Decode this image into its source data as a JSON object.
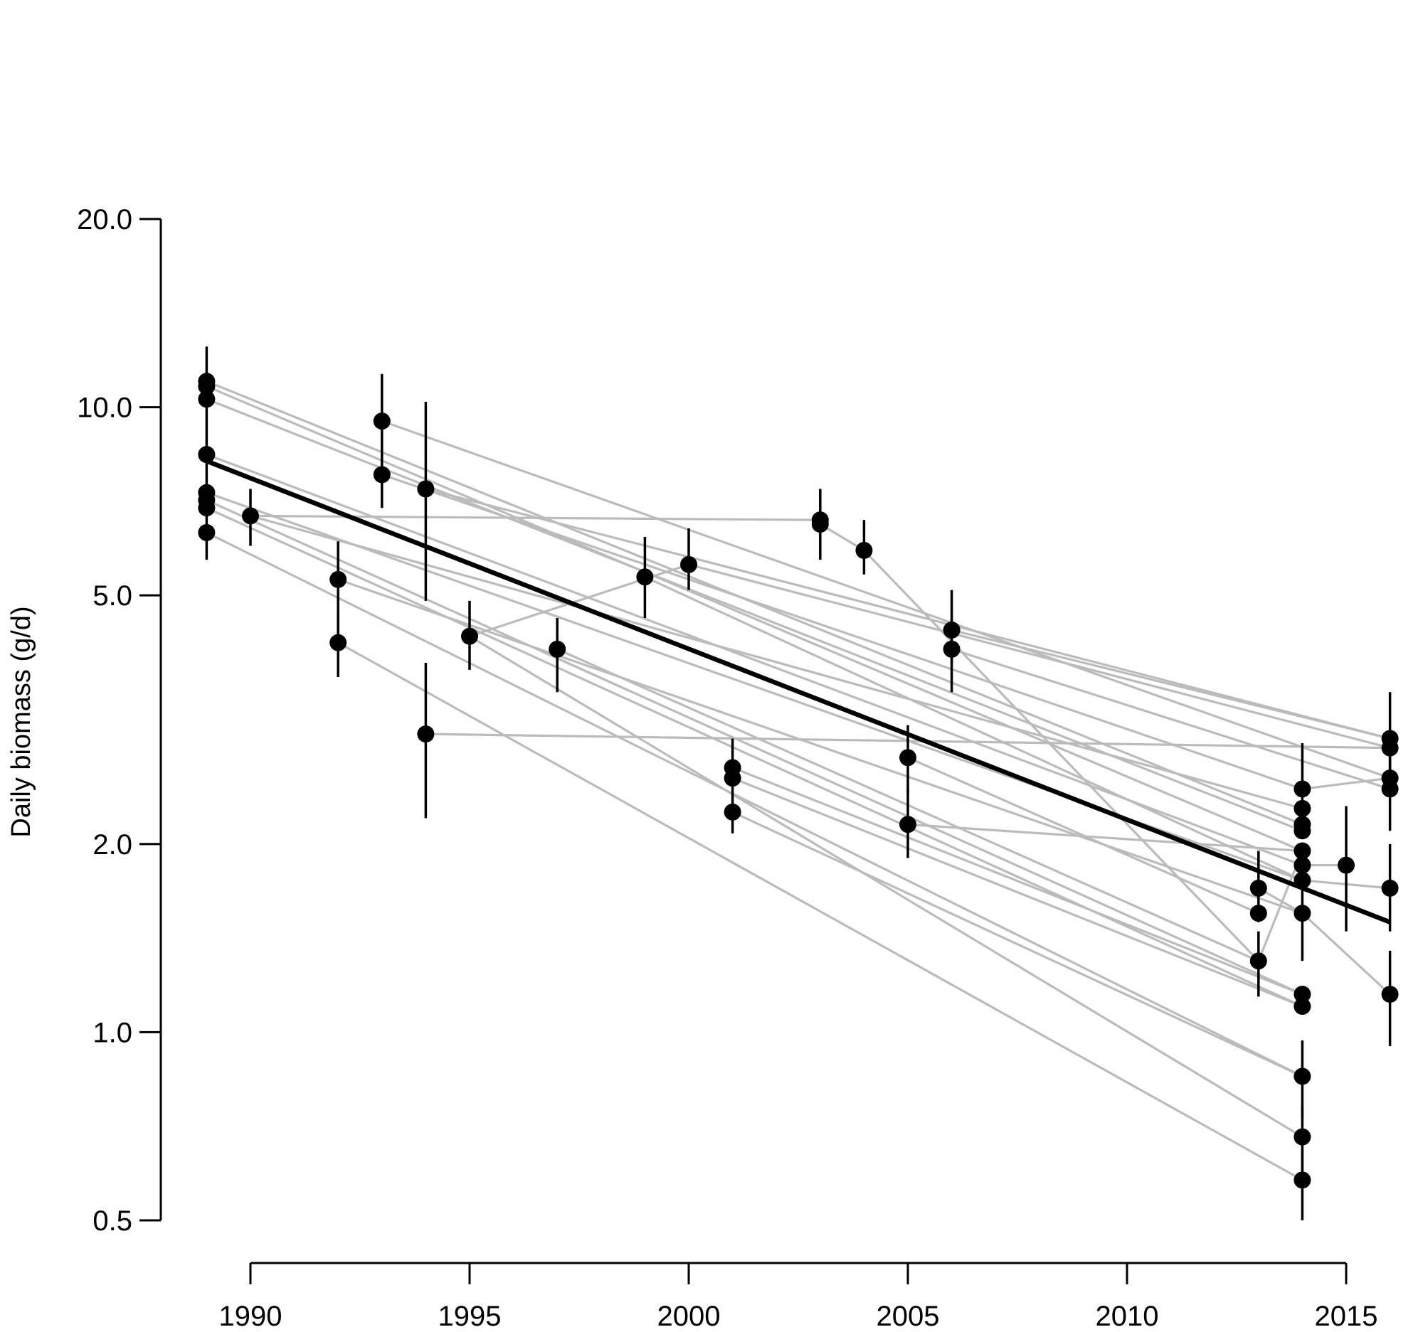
{
  "chart_data": {
    "type": "scatter",
    "title": "",
    "xlabel": "",
    "ylabel": "Daily biomass (g/d)",
    "y_scale": "log",
    "xlim": [
      1989,
      2016
    ],
    "ylim": [
      0.5,
      20
    ],
    "x_ticks": [
      "1990",
      "1995",
      "2000",
      "2005",
      "2010",
      "2015"
    ],
    "y_ticks": [
      "0.5",
      "1.0",
      "2.0",
      "5.0",
      "10.0",
      "20.0"
    ],
    "grid": false,
    "colors": {
      "points": "#000000",
      "connectors": "#bbbbbb",
      "trend": "#000000"
    },
    "points": [
      {
        "x": 1989,
        "y": 11.0,
        "lo": 7.1,
        "hi": 12.5
      },
      {
        "x": 1989,
        "y": 10.8
      },
      {
        "x": 1989,
        "y": 10.3
      },
      {
        "x": 1989,
        "y": 8.4
      },
      {
        "x": 1989,
        "y": 7.3
      },
      {
        "x": 1989,
        "y": 7.1
      },
      {
        "x": 1989,
        "y": 6.9
      },
      {
        "x": 1989,
        "y": 6.3,
        "lo": 5.7,
        "hi": 7.1
      },
      {
        "x": 1990,
        "y": 6.7,
        "lo": 6.0,
        "hi": 7.4
      },
      {
        "x": 1992,
        "y": 5.3,
        "lo": 4.3,
        "hi": 6.1
      },
      {
        "x": 1992,
        "y": 4.2,
        "lo": 3.7,
        "hi": 4.7
      },
      {
        "x": 1993,
        "y": 9.5,
        "lo": 7.8,
        "hi": 11.3
      },
      {
        "x": 1993,
        "y": 7.8,
        "lo": 6.9,
        "hi": 8.4
      },
      {
        "x": 1994,
        "y": 7.4,
        "lo": 4.9,
        "hi": 10.2
      },
      {
        "x": 1994,
        "y": 3.0,
        "lo": 2.2,
        "hi": 3.9
      },
      {
        "x": 1995,
        "y": 4.3,
        "lo": 3.8,
        "hi": 4.9
      },
      {
        "x": 1997,
        "y": 4.1,
        "lo": 3.5,
        "hi": 4.6
      },
      {
        "x": 1999,
        "y": 5.35,
        "lo": 4.6,
        "hi": 6.2
      },
      {
        "x": 2000,
        "y": 5.6,
        "lo": 5.1,
        "hi": 6.4
      },
      {
        "x": 2001,
        "y": 2.65,
        "lo": 2.45,
        "hi": 2.95
      },
      {
        "x": 2001,
        "y": 2.55
      },
      {
        "x": 2001,
        "y": 2.25,
        "lo": 2.08,
        "hi": 2.45
      },
      {
        "x": 2003,
        "y": 6.6,
        "lo": 5.7,
        "hi": 7.4
      },
      {
        "x": 2003,
        "y": 6.5
      },
      {
        "x": 2004,
        "y": 5.9,
        "lo": 5.4,
        "hi": 6.6
      },
      {
        "x": 2005,
        "y": 2.75,
        "lo": 2.4,
        "hi": 3.1
      },
      {
        "x": 2005,
        "y": 2.15,
        "lo": 1.9,
        "hi": 2.45
      },
      {
        "x": 2006,
        "y": 4.4,
        "lo": 3.9,
        "hi": 5.1
      },
      {
        "x": 2006,
        "y": 4.1,
        "lo": 3.5,
        "hi": 4.6
      },
      {
        "x": 2013,
        "y": 1.7,
        "lo": 1.5,
        "hi": 1.95
      },
      {
        "x": 2013,
        "y": 1.55
      },
      {
        "x": 2013,
        "y": 1.3,
        "lo": 1.14,
        "hi": 1.45
      },
      {
        "x": 2014,
        "y": 2.45,
        "lo": 2.1,
        "hi": 2.9
      },
      {
        "x": 2014,
        "y": 2.28
      },
      {
        "x": 2014,
        "y": 2.15
      },
      {
        "x": 2014,
        "y": 2.1
      },
      {
        "x": 2014,
        "y": 1.95
      },
      {
        "x": 2014,
        "y": 1.85
      },
      {
        "x": 2014,
        "y": 1.75
      },
      {
        "x": 2014,
        "y": 1.55,
        "lo": 1.3,
        "hi": 1.8
      },
      {
        "x": 2014,
        "y": 1.15
      },
      {
        "x": 2014,
        "y": 1.1
      },
      {
        "x": 2014,
        "y": 0.85,
        "lo": 0.73,
        "hi": 0.97
      },
      {
        "x": 2014,
        "y": 0.68,
        "lo": 0.6,
        "hi": 0.76
      },
      {
        "x": 2014,
        "y": 0.58,
        "lo": 0.5,
        "hi": 0.65
      },
      {
        "x": 2015,
        "y": 1.85,
        "lo": 1.45,
        "hi": 2.3
      },
      {
        "x": 2016,
        "y": 2.95,
        "lo": 2.5,
        "hi": 3.5
      },
      {
        "x": 2016,
        "y": 2.85
      },
      {
        "x": 2016,
        "y": 2.55
      },
      {
        "x": 2016,
        "y": 2.45,
        "lo": 2.1,
        "hi": 2.85
      },
      {
        "x": 2016,
        "y": 1.7,
        "lo": 1.45,
        "hi": 2.0
      },
      {
        "x": 2016,
        "y": 1.15,
        "lo": 0.95,
        "hi": 1.35
      }
    ],
    "connections": [
      [
        [
          1989,
          11.0
        ],
        [
          2014,
          2.15
        ]
      ],
      [
        [
          1989,
          10.8
        ],
        [
          2014,
          1.95
        ]
      ],
      [
        [
          1989,
          10.3
        ],
        [
          2014,
          2.1
        ]
      ],
      [
        [
          1989,
          8.4
        ],
        [
          2014,
          1.85
        ]
      ],
      [
        [
          1989,
          7.3
        ],
        [
          2014,
          1.75
        ]
      ],
      [
        [
          1989,
          7.1
        ],
        [
          2014,
          1.15
        ]
      ],
      [
        [
          1989,
          6.9
        ],
        [
          2014,
          1.1
        ]
      ],
      [
        [
          1989,
          6.3
        ],
        [
          2014,
          0.85
        ]
      ],
      [
        [
          1990,
          6.7
        ],
        [
          2003,
          6.6
        ]
      ],
      [
        [
          1990,
          6.7
        ],
        [
          2014,
          2.28
        ]
      ],
      [
        [
          1992,
          5.3
        ],
        [
          2014,
          1.55
        ]
      ],
      [
        [
          1992,
          4.2
        ],
        [
          2014,
          0.58
        ]
      ],
      [
        [
          1993,
          9.5
        ],
        [
          2016,
          2.55
        ]
      ],
      [
        [
          1993,
          7.8
        ],
        [
          2014,
          2.45
        ]
      ],
      [
        [
          1994,
          7.4
        ],
        [
          2016,
          2.95
        ]
      ],
      [
        [
          1994,
          3.0
        ],
        [
          2016,
          2.85
        ]
      ],
      [
        [
          1995,
          4.3
        ],
        [
          2000,
          5.6
        ]
      ],
      [
        [
          1995,
          4.3
        ],
        [
          2014,
          0.68
        ]
      ],
      [
        [
          1997,
          4.1
        ],
        [
          2013,
          1.3
        ]
      ],
      [
        [
          1999,
          5.35
        ],
        [
          2014,
          1.75
        ]
      ],
      [
        [
          2000,
          5.6
        ],
        [
          2016,
          2.85
        ]
      ],
      [
        [
          2001,
          2.65
        ],
        [
          2014,
          1.15
        ]
      ],
      [
        [
          2001,
          2.55
        ],
        [
          2014,
          1.1
        ]
      ],
      [
        [
          2001,
          2.25
        ],
        [
          2014,
          0.85
        ]
      ],
      [
        [
          2003,
          6.5
        ],
        [
          2004,
          5.9
        ]
      ],
      [
        [
          2004,
          5.9
        ],
        [
          2013,
          1.3
        ]
      ],
      [
        [
          2005,
          2.75
        ],
        [
          2013,
          1.55
        ]
      ],
      [
        [
          2005,
          2.15
        ],
        [
          2014,
          1.95
        ]
      ],
      [
        [
          2006,
          4.4
        ],
        [
          2016,
          2.95
        ]
      ],
      [
        [
          2006,
          4.1
        ],
        [
          2016,
          2.45
        ]
      ],
      [
        [
          2013,
          1.7
        ],
        [
          2014,
          1.55
        ]
      ],
      [
        [
          2013,
          1.3
        ],
        [
          2014,
          1.95
        ]
      ],
      [
        [
          2014,
          2.45
        ],
        [
          2016,
          2.55
        ]
      ],
      [
        [
          2014,
          1.85
        ],
        [
          2015,
          1.85
        ]
      ],
      [
        [
          2014,
          1.75
        ],
        [
          2016,
          1.7
        ]
      ],
      [
        [
          2014,
          1.55
        ],
        [
          2016,
          1.15
        ]
      ]
    ],
    "trend": [
      [
        1989,
        8.2
      ],
      [
        2016,
        1.5
      ]
    ]
  }
}
